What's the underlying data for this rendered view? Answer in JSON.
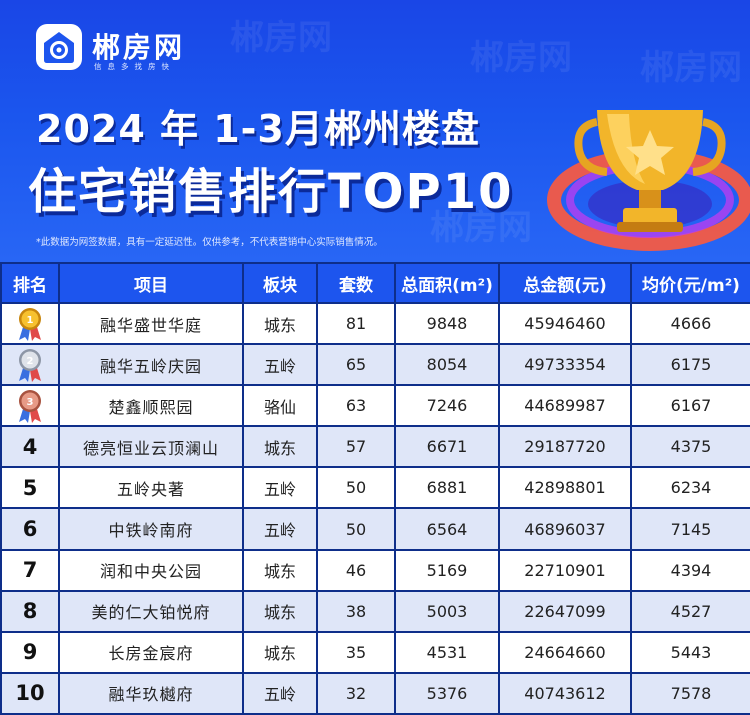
{
  "brand": {
    "name": "郴房网",
    "slogan": "信息多找房快"
  },
  "title": {
    "line1": "2024 年 1-3月郴州楼盘",
    "line2": "住宅销售排行TOP10"
  },
  "disclaimer": "*此数据为网签数据，具有一定延迟性。仅供参考，不代表营销中心实际销售情况。",
  "colors": {
    "header_blue": "#1d55ee",
    "border_navy": "#0e2e8a",
    "row_alt": "#dfe6f8"
  },
  "chart_data": {
    "type": "table",
    "columns": [
      "排名",
      "项目",
      "板块",
      "套数",
      "总面积(m²)",
      "总金额(元)",
      "均价(元/m²)"
    ],
    "rows": [
      {
        "rank": "1",
        "medal": "gold",
        "project": "融华盛世华庭",
        "district": "城东",
        "units": "81",
        "area": "9848",
        "amount": "45946460",
        "avg": "4666"
      },
      {
        "rank": "2",
        "medal": "silver",
        "project": "融华五岭庆园",
        "district": "五岭",
        "units": "65",
        "area": "8054",
        "amount": "49733354",
        "avg": "6175"
      },
      {
        "rank": "3",
        "medal": "bronze",
        "project": "楚鑫顺熙园",
        "district": "骆仙",
        "units": "63",
        "area": "7246",
        "amount": "44689987",
        "avg": "6167"
      },
      {
        "rank": "4",
        "medal": "",
        "project": "德亮恒业云顶澜山",
        "district": "城东",
        "units": "57",
        "area": "6671",
        "amount": "29187720",
        "avg": "4375"
      },
      {
        "rank": "5",
        "medal": "",
        "project": "五岭央著",
        "district": "五岭",
        "units": "50",
        "area": "6881",
        "amount": "42898801",
        "avg": "6234"
      },
      {
        "rank": "6",
        "medal": "",
        "project": "中铁岭南府",
        "district": "五岭",
        "units": "50",
        "area": "6564",
        "amount": "46896037",
        "avg": "7145"
      },
      {
        "rank": "7",
        "medal": "",
        "project": "润和中央公园",
        "district": "城东",
        "units": "46",
        "area": "5169",
        "amount": "22710901",
        "avg": "4394"
      },
      {
        "rank": "8",
        "medal": "",
        "project": "美的仁大铂悦府",
        "district": "城东",
        "units": "38",
        "area": "5003",
        "amount": "22647099",
        "avg": "4527"
      },
      {
        "rank": "9",
        "medal": "",
        "project": "长房金宸府",
        "district": "城东",
        "units": "35",
        "area": "4531",
        "amount": "24664660",
        "avg": "5443"
      },
      {
        "rank": "10",
        "medal": "",
        "project": "融华玖樾府",
        "district": "五岭",
        "units": "32",
        "area": "5376",
        "amount": "40743612",
        "avg": "7578"
      }
    ]
  }
}
